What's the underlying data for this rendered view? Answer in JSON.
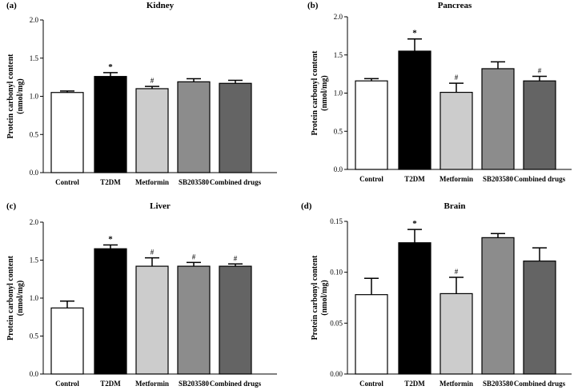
{
  "chart_data": [
    {
      "type": "bar",
      "panel": "(a)",
      "title": "Kidney",
      "ylabel_lines": [
        "Protein carbonyl content",
        "(nmol/mg)"
      ],
      "categories": [
        "Control",
        "T2DM",
        "Metformin",
        "SB203580",
        "Combined drugs"
      ],
      "values": [
        1.05,
        1.26,
        1.1,
        1.19,
        1.17
      ],
      "errors": [
        0.02,
        0.05,
        0.03,
        0.04,
        0.04
      ],
      "significance": [
        "",
        "*",
        "#",
        "",
        ""
      ],
      "ylim": [
        0,
        2.0
      ],
      "yticks": [
        0,
        0.5,
        1.0,
        1.5,
        2.0
      ],
      "ytick_labels": [
        "0.0",
        "0.5",
        "1.0",
        "1.5",
        "2.0"
      ],
      "colors": [
        "#ffffff",
        "#000000",
        "#cccccc",
        "#8c8c8c",
        "#646464"
      ]
    },
    {
      "type": "bar",
      "panel": "(b)",
      "title": "Pancreas",
      "ylabel_lines": [
        "Protein carbonyl content",
        "(nmol/mg)"
      ],
      "categories": [
        "Control",
        "T2DM",
        "Metformin",
        "SB203580",
        "Combined drugs"
      ],
      "values": [
        1.16,
        1.55,
        1.01,
        1.32,
        1.16
      ],
      "errors": [
        0.03,
        0.16,
        0.12,
        0.09,
        0.06
      ],
      "significance": [
        "",
        "*",
        "#",
        "",
        "#"
      ],
      "ylim": [
        0,
        2.0
      ],
      "yticks": [
        0,
        0.5,
        1.0,
        1.5,
        2.0
      ],
      "ytick_labels": [
        "0.0",
        "0.5",
        "1.0",
        "1.5",
        "2.0"
      ],
      "colors": [
        "#ffffff",
        "#000000",
        "#cccccc",
        "#8c8c8c",
        "#646464"
      ]
    },
    {
      "type": "bar",
      "panel": "(c)",
      "title": "Liver",
      "ylabel_lines": [
        "Protein carbonyl content",
        "(nmol/mg)"
      ],
      "categories": [
        "Control",
        "T2DM",
        "Metformin",
        "SB203580",
        "Combined drugs"
      ],
      "values": [
        0.87,
        1.65,
        1.42,
        1.42,
        1.42
      ],
      "errors": [
        0.09,
        0.05,
        0.11,
        0.05,
        0.03
      ],
      "significance": [
        "",
        "*",
        "#",
        "#",
        "#"
      ],
      "ylim": [
        0,
        2.0
      ],
      "yticks": [
        0,
        0.5,
        1.0,
        1.5,
        2.0
      ],
      "ytick_labels": [
        "0.0",
        "0.5",
        "1.0",
        "1.5",
        "2.0"
      ],
      "colors": [
        "#ffffff",
        "#000000",
        "#cccccc",
        "#8c8c8c",
        "#646464"
      ]
    },
    {
      "type": "bar",
      "panel": "(d)",
      "title": "Brain",
      "ylabel_lines": [
        "Protein carbonyl content",
        "(nmol/mg)"
      ],
      "categories": [
        "Control",
        "T2DM",
        "Metformin",
        "SB203580",
        "Combined drugs"
      ],
      "values": [
        0.078,
        0.129,
        0.079,
        0.134,
        0.111
      ],
      "errors": [
        0.016,
        0.013,
        0.016,
        0.004,
        0.013
      ],
      "significance": [
        "",
        "*",
        "#",
        "",
        ""
      ],
      "ylim": [
        0,
        0.15
      ],
      "yticks": [
        0,
        0.05,
        0.1,
        0.15
      ],
      "ytick_labels": [
        "0.00",
        "0.05",
        "0.10",
        "0.15"
      ],
      "colors": [
        "#ffffff",
        "#000000",
        "#cccccc",
        "#8c8c8c",
        "#646464"
      ]
    }
  ]
}
